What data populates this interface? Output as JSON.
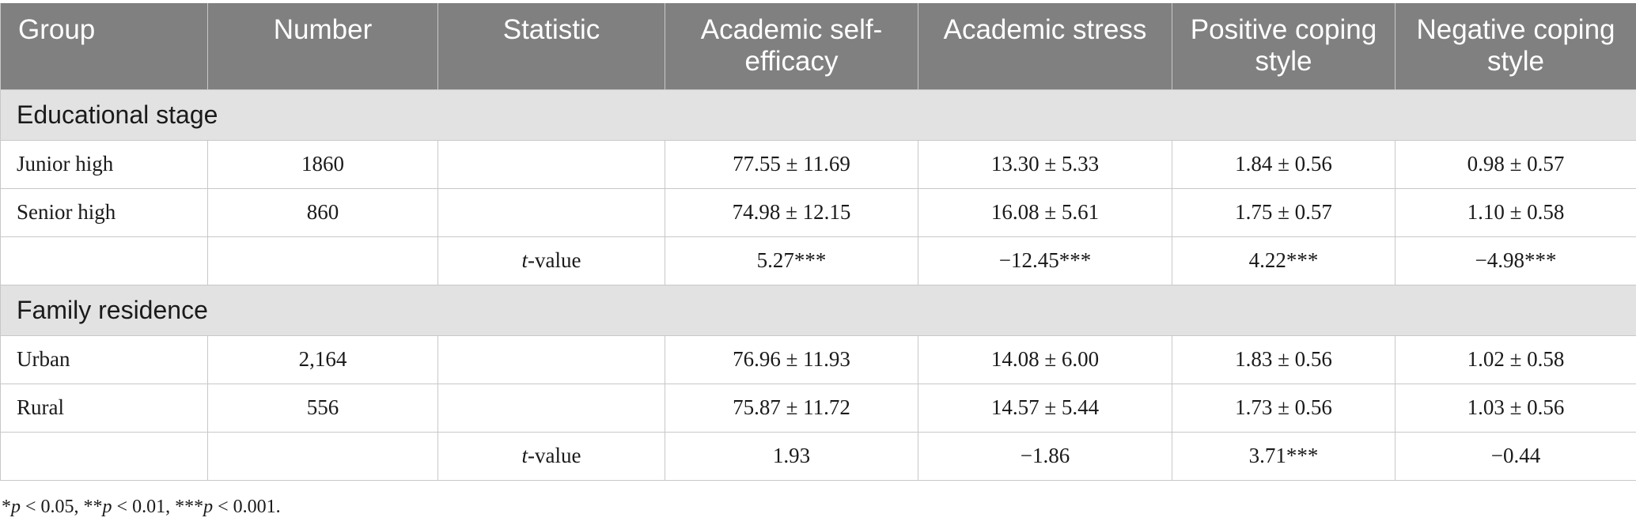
{
  "table": {
    "headers": [
      "Group",
      "Number",
      "Statistic",
      "Academic self-efficacy",
      "Academic stress",
      "Positive coping style",
      "Negative coping style"
    ],
    "sections": [
      {
        "title": "Educational stage",
        "rows": [
          [
            "Junior high",
            "1860",
            "",
            "77.55 ± 11.69",
            "13.30 ± 5.33",
            "1.84 ± 0.56",
            "0.98 ± 0.57"
          ],
          [
            "Senior high",
            "860",
            "",
            "74.98 ± 12.15",
            "16.08 ± 5.61",
            "1.75 ± 0.57",
            "1.10 ± 0.58"
          ]
        ],
        "stat_row": {
          "stat_italic": "t",
          "stat_rest": "-value",
          "values": [
            "5.27***",
            "−12.45***",
            "4.22***",
            "−4.98***"
          ]
        }
      },
      {
        "title": "Family residence",
        "rows": [
          [
            "Urban",
            "2,164",
            "",
            "76.96 ± 11.93",
            "14.08 ± 6.00",
            "1.83 ± 0.56",
            "1.02 ± 0.58"
          ],
          [
            "Rural",
            "556",
            "",
            "75.87 ± 11.72",
            "14.57 ± 5.44",
            "1.73 ± 0.56",
            "1.03 ± 0.56"
          ]
        ],
        "stat_row": {
          "stat_italic": "t",
          "stat_rest": "-value",
          "values": [
            "1.93",
            "−1.86",
            "3.71***",
            "−0.44"
          ]
        }
      }
    ]
  },
  "footnote": {
    "parts": [
      {
        "text": "*",
        "italic": false
      },
      {
        "text": "p",
        "italic": true
      },
      {
        "text": " < 0.05, **",
        "italic": false
      },
      {
        "text": "p",
        "italic": true
      },
      {
        "text": " < 0.01, ***",
        "italic": false
      },
      {
        "text": "p",
        "italic": true
      },
      {
        "text": " < 0.001.",
        "italic": false
      }
    ]
  }
}
